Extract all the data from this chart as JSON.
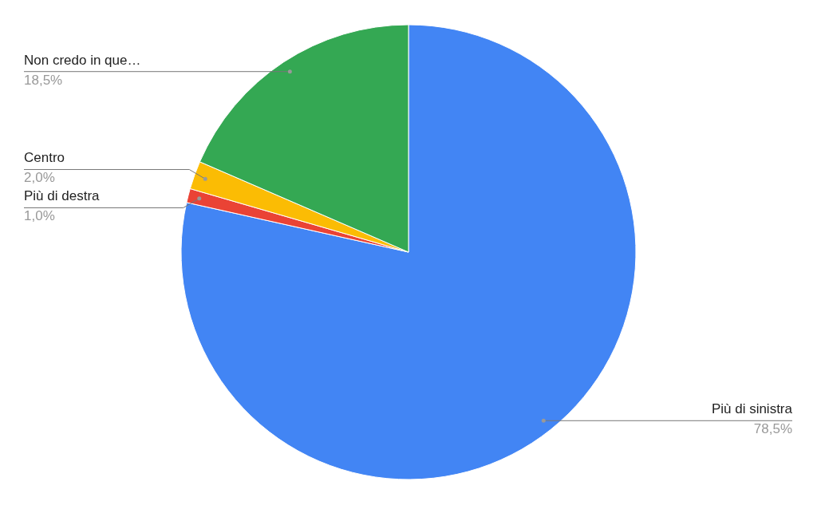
{
  "chart_data": {
    "type": "pie",
    "categories": [
      "Più di sinistra",
      "Più di destra",
      "Centro",
      "Non credo in que…"
    ],
    "values": [
      78.5,
      1.0,
      2.0,
      18.5
    ],
    "colors": [
      "#4285f4",
      "#ea4335",
      "#fbbc04",
      "#34a853"
    ],
    "value_labels": [
      "78,5%",
      "1,0%",
      "2,0%",
      "18,5%"
    ]
  }
}
